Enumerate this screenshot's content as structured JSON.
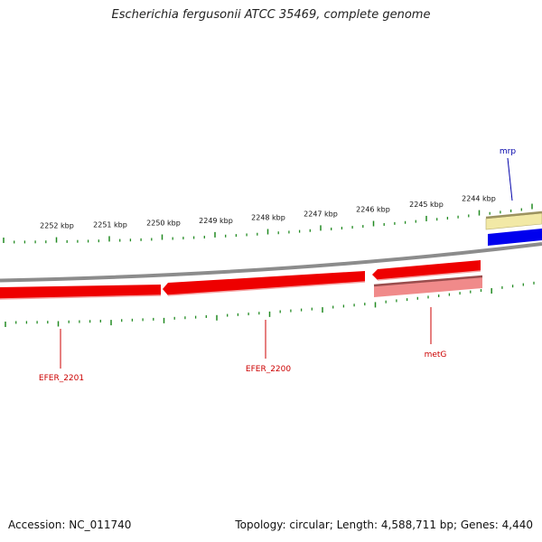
{
  "title": "Escherichia fergusonii ATCC 35469, complete genome",
  "footer": {
    "accession": "Accession: NC_011740",
    "summary": "Topology: circular; Length: 4,588,711 bp; Genes: 4,440"
  },
  "kbp_labels": [
    "2252 kbp",
    "2251 kbp",
    "2250 kbp",
    "2249 kbp",
    "2248 kbp",
    "2247 kbp",
    "2246 kbp",
    "2245 kbp",
    "2244 kbp"
  ],
  "genes": [
    {
      "name": "mrp",
      "strand": "+",
      "color": "#0000dd"
    },
    {
      "name": "EFER_2201",
      "strand": "-",
      "color": "#cc0000"
    },
    {
      "name": "EFER_2200",
      "strand": "-",
      "color": "#cc0000"
    },
    {
      "name": "metG",
      "strand": "-",
      "color": "#cc0000"
    }
  ],
  "colors": {
    "backbone": "#8c8c8c",
    "tick": "#228b22",
    "cds_forward": "#0000ee",
    "cds_reverse": "#ee0000",
    "gene_forward": "#f2e9a6",
    "gene_reverse": "#f08a8a",
    "label_forward": "#0000aa",
    "label_reverse": "#cc0000"
  }
}
